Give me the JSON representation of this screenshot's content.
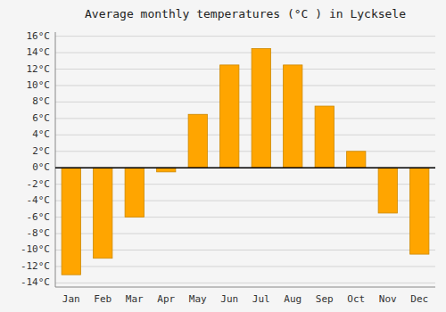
{
  "chart_data": {
    "type": "bar",
    "title": "Average monthly temperatures (°C ) in Lycksele",
    "categories": [
      "Jan",
      "Feb",
      "Mar",
      "Apr",
      "May",
      "Jun",
      "Jul",
      "Aug",
      "Sep",
      "Oct",
      "Nov",
      "Dec"
    ],
    "values": [
      -13,
      -11,
      -6,
      -0.5,
      6.5,
      12.5,
      14.5,
      12.5,
      7.5,
      2,
      -5.5,
      -10.5
    ],
    "color": "#FFA500",
    "ylim": [
      -14.5,
      16.5
    ],
    "yticks": [
      {
        "value": -14,
        "label": "-14°C"
      },
      {
        "value": -12,
        "label": "-12°C"
      },
      {
        "value": -10,
        "label": "-10°C"
      },
      {
        "value": -8,
        "label": "-8°C"
      },
      {
        "value": -6,
        "label": "-6°C"
      },
      {
        "value": -4,
        "label": "-4°C"
      },
      {
        "value": -2,
        "label": "-2°C"
      },
      {
        "value": 0,
        "label": "0°C"
      },
      {
        "value": 2,
        "label": "2°C"
      },
      {
        "value": 4,
        "label": "4°C"
      },
      {
        "value": 6,
        "label": "6°C"
      },
      {
        "value": 8,
        "label": "8°C"
      },
      {
        "value": 10,
        "label": "10°C"
      },
      {
        "value": 12,
        "label": "12°C"
      },
      {
        "value": 14,
        "label": "14°C"
      },
      {
        "value": 16,
        "label": "16°C"
      }
    ],
    "grid": true
  }
}
